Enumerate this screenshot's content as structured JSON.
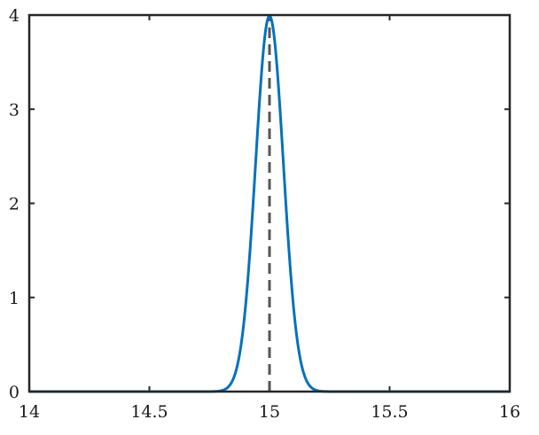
{
  "chart_data": {
    "type": "line",
    "title": "",
    "xlabel": "",
    "ylabel": "",
    "xlim": [
      14,
      16
    ],
    "ylim": [
      0,
      4
    ],
    "xticks": [
      14,
      14.5,
      15,
      15.5,
      16
    ],
    "xtick_labels": [
      "14",
      "14.5",
      "15",
      "15.5",
      "16"
    ],
    "yticks": [
      0,
      1,
      2,
      3,
      4
    ],
    "ytick_labels": [
      "0",
      "1",
      "2",
      "3",
      "4"
    ],
    "grid": false,
    "series": [
      {
        "color": "#0072BD",
        "style": "solid",
        "x": [
          14.0,
          14.5,
          14.6,
          14.65,
          14.7,
          14.75,
          14.8,
          14.85,
          14.9,
          14.95,
          15.0,
          15.05,
          15.1,
          15.15,
          15.2,
          15.25,
          15.3,
          15.35,
          15.4,
          15.5,
          16.0
        ],
        "y": [
          0.0,
          0.0,
          0.002,
          0.007,
          0.03,
          0.12,
          0.35,
          0.83,
          1.64,
          2.75,
          3.99,
          2.75,
          1.64,
          0.83,
          0.35,
          0.12,
          0.03,
          0.007,
          0.002,
          0.0,
          0.0
        ]
      }
    ],
    "reference_lines": [
      {
        "orientation": "vertical",
        "x": 15,
        "y_range": [
          0,
          4
        ],
        "color": "#555555",
        "style": "dashed"
      }
    ]
  }
}
